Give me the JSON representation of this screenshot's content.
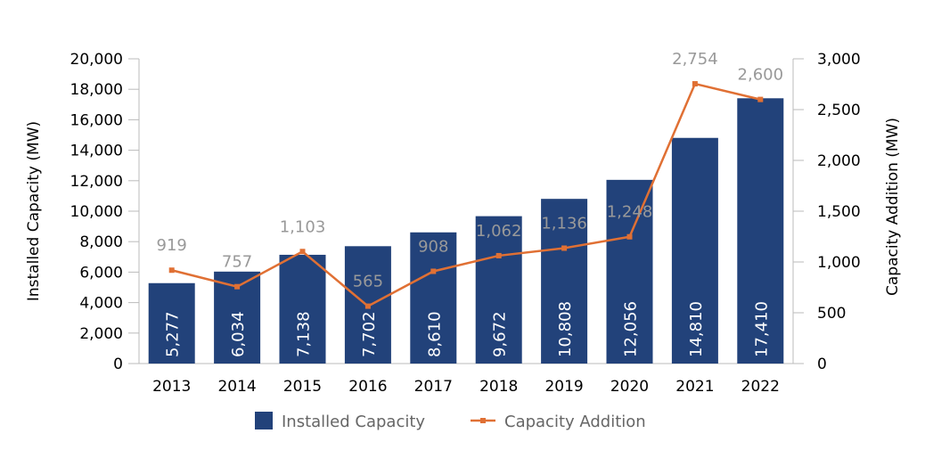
{
  "chart_data": {
    "type": "bar+line",
    "categories": [
      "2013",
      "2014",
      "2015",
      "2016",
      "2017",
      "2018",
      "2019",
      "2020",
      "2021",
      "2022"
    ],
    "series": [
      {
        "name": "Installed Capacity",
        "type": "bar",
        "axis": "left",
        "values": [
          5277,
          6034,
          7138,
          7702,
          8610,
          9672,
          10808,
          12056,
          14810,
          17410
        ],
        "labels": [
          "5,277",
          "6,034",
          "7,138",
          "7,702",
          "8,610",
          "9,672",
          "10,808",
          "12,056",
          "14,810",
          "17,410"
        ],
        "color": "#22427A"
      },
      {
        "name": "Capacity Addition",
        "type": "line",
        "axis": "right",
        "values": [
          919,
          757,
          1103,
          565,
          908,
          1062,
          1136,
          1248,
          2754,
          2600
        ],
        "labels": [
          "919",
          "757",
          "1,103",
          "565",
          "908",
          "1,062",
          "1,136",
          "1,248",
          "2,754",
          "2,600"
        ],
        "color": "#E07034"
      }
    ],
    "ylabel_left": "Installed Capacity (MW)",
    "ylabel_right": "Capacity Addition (MW)",
    "ylim_left": [
      0,
      20000
    ],
    "ylim_right": [
      0,
      3000
    ],
    "yticks_left": [
      "0",
      "2,000",
      "4,000",
      "6,000",
      "8,000",
      "10,000",
      "12,000",
      "14,000",
      "16,000",
      "18,000",
      "20,000"
    ],
    "yticks_right": [
      "0",
      "500",
      "1,000",
      "1,500",
      "2,000",
      "2,500",
      "3,000"
    ],
    "grid": false,
    "legend_position": "bottom"
  }
}
